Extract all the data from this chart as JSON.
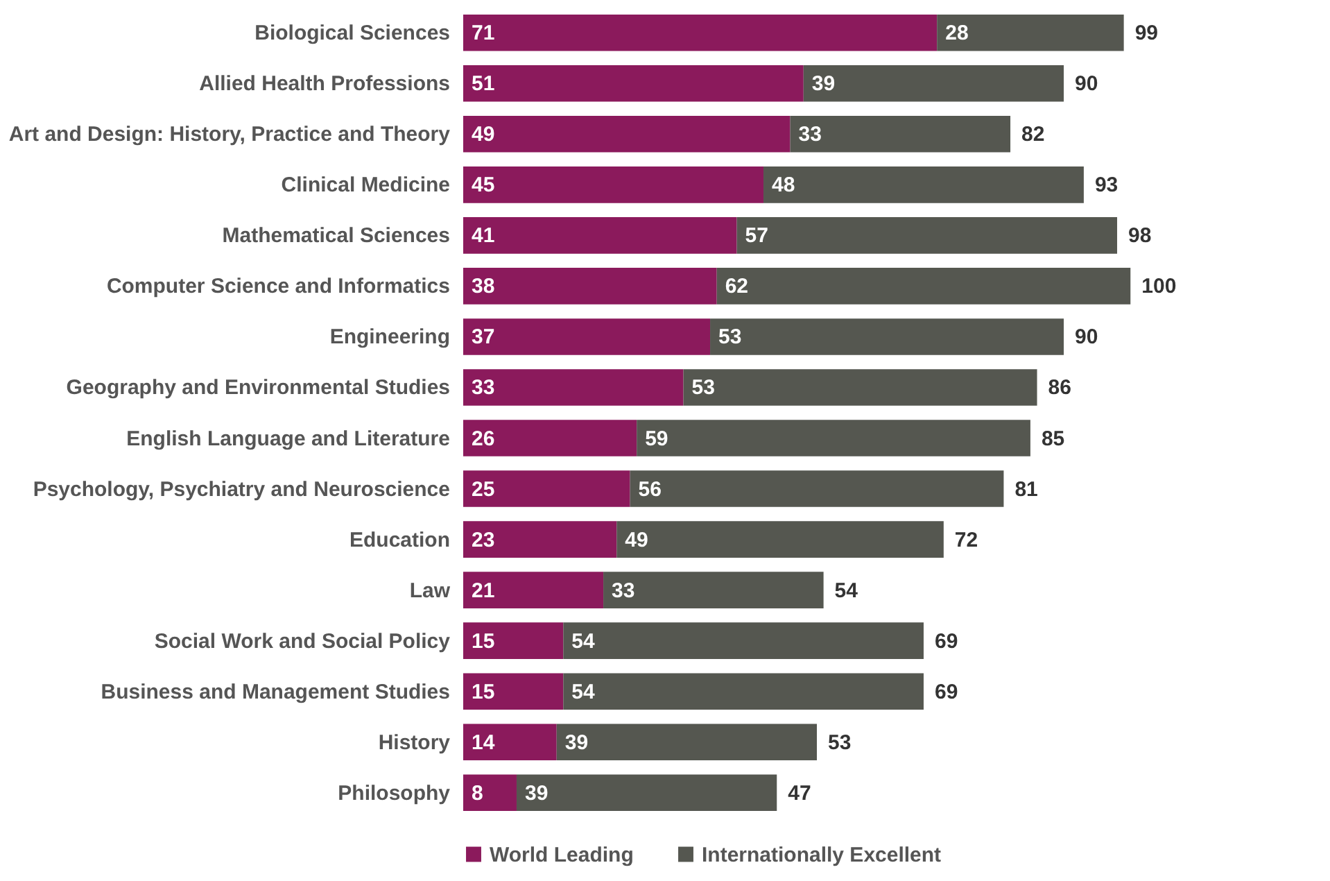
{
  "chart_data": {
    "type": "bar",
    "orientation": "horizontal",
    "stacked": true,
    "data_labels": true,
    "legend": "bottom",
    "categories": [
      "Biological Sciences",
      "Allied Health Professions",
      "Art and Design: History, Practice and Theory",
      "Clinical Medicine",
      "Mathematical Sciences",
      "Computer Science and Informatics",
      "Engineering",
      "Geography and Environmental Studies",
      "English Language and Literature",
      "Psychology, Psychiatry and Neuroscience",
      "Education",
      "Law",
      "Social Work and Social Policy",
      "Business and Management Studies",
      "History",
      "Philosophy"
    ],
    "series": [
      {
        "name": "World Leading",
        "color": "#8b1a5c",
        "values": [
          71,
          51,
          49,
          45,
          41,
          38,
          37,
          33,
          26,
          25,
          23,
          21,
          15,
          15,
          14,
          8
        ]
      },
      {
        "name": "Internationally Excellent",
        "color": "#555750",
        "values": [
          28,
          39,
          33,
          48,
          57,
          62,
          53,
          53,
          59,
          56,
          49,
          33,
          54,
          54,
          39,
          39
        ]
      }
    ],
    "totals": [
      "99",
      "90",
      "82",
      "93",
      "98",
      "100",
      "90",
      "86",
      "85",
      "81",
      "72",
      "54",
      "69",
      "69",
      "53",
      "47"
    ]
  }
}
